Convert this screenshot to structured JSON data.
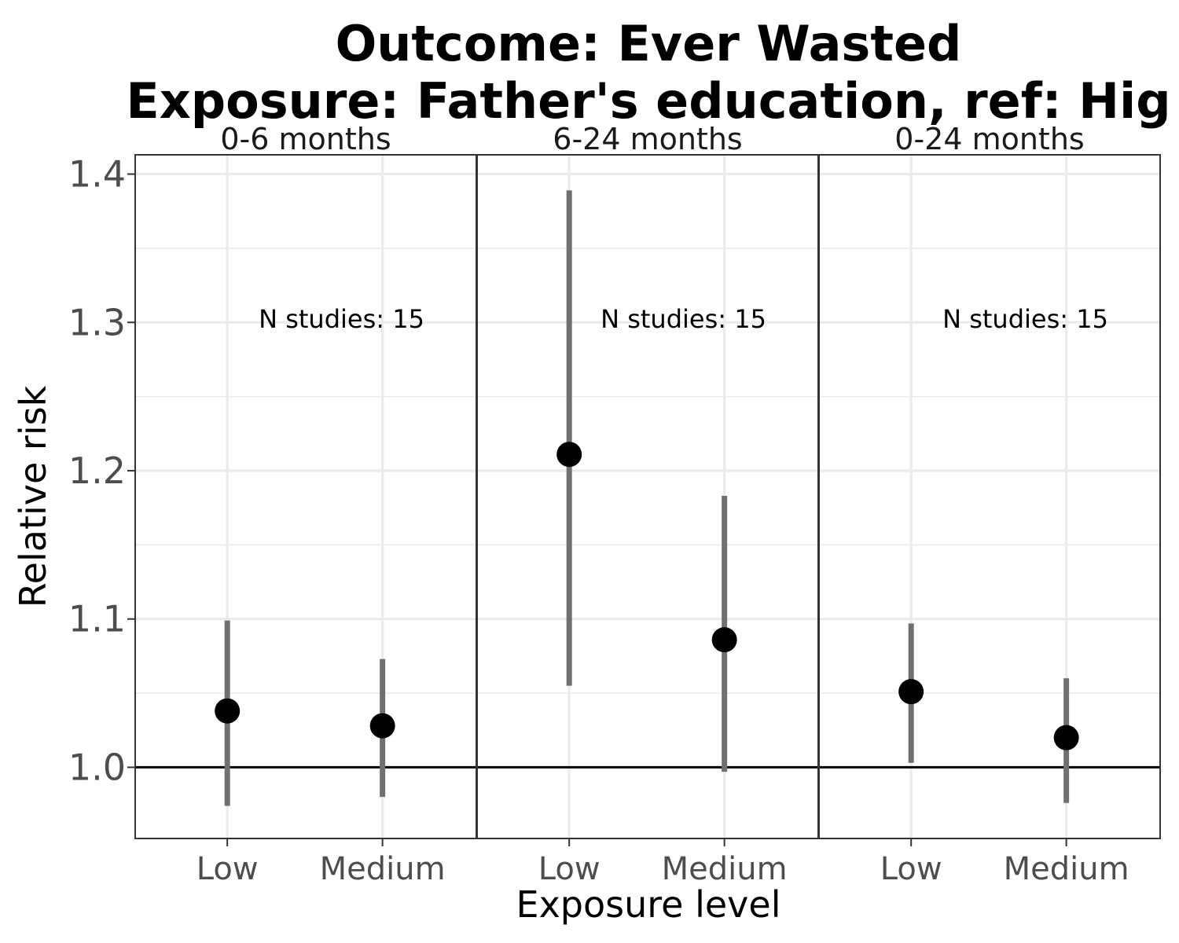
{
  "chart_data": {
    "type": "scatter",
    "title_lines": [
      "Outcome: Ever Wasted",
      "Exposure: Father's education, ref: Hig"
    ],
    "xlabel": "Exposure level",
    "ylabel": "Relative risk",
    "ylim": [
      0.952,
      1.413
    ],
    "yticks": [
      1.0,
      1.1,
      1.2,
      1.3,
      1.4
    ],
    "ytick_labels": [
      "1.0",
      "1.1",
      "1.2",
      "1.3",
      "1.4"
    ],
    "reference_line": 1.0,
    "grid": true,
    "categories": [
      "Low",
      "Medium"
    ],
    "panels": [
      {
        "label": "0-6 months",
        "annotation": "N studies: 15",
        "points": [
          {
            "category": "Low",
            "estimate": 1.038,
            "ci_lower": 0.974,
            "ci_upper": 1.099
          },
          {
            "category": "Medium",
            "estimate": 1.028,
            "ci_lower": 0.98,
            "ci_upper": 1.073
          }
        ]
      },
      {
        "label": "6-24 months",
        "annotation": "N studies: 15",
        "points": [
          {
            "category": "Low",
            "estimate": 1.211,
            "ci_lower": 1.055,
            "ci_upper": 1.389
          },
          {
            "category": "Medium",
            "estimate": 1.086,
            "ci_lower": 0.997,
            "ci_upper": 1.183
          }
        ]
      },
      {
        "label": "0-24 months",
        "annotation": "N studies: 15",
        "points": [
          {
            "category": "Low",
            "estimate": 1.051,
            "ci_lower": 1.003,
            "ci_upper": 1.097
          },
          {
            "category": "Medium",
            "estimate": 1.02,
            "ci_lower": 0.976,
            "ci_upper": 1.06
          }
        ]
      }
    ]
  }
}
